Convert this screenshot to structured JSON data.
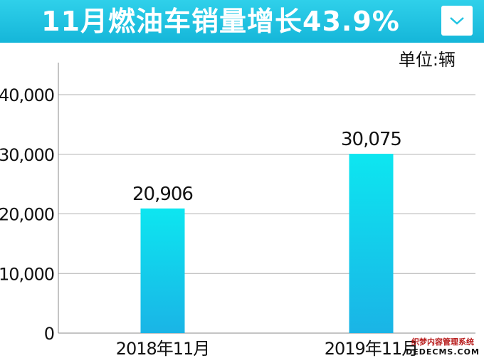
{
  "header": {
    "title": "11月燃油车销量增长43.9%",
    "menu_icon": "chevron-down-icon",
    "background": "#22c4e2"
  },
  "unit_label": "单位:辆",
  "watermark": {
    "line1": "织梦内容管理系统",
    "line2": "DEDECMS.COM"
  },
  "chart_data": {
    "type": "bar",
    "categories": [
      "2018年11月",
      "2019年11月"
    ],
    "values": [
      20906,
      30075
    ],
    "value_labels": [
      "20,906",
      "30,075"
    ],
    "ylim": [
      0,
      40000
    ],
    "yticks": [
      0,
      10000,
      20000,
      30000,
      40000
    ],
    "ytick_labels": [
      "0",
      "10,000",
      "20,000",
      "30,000",
      "40,000"
    ],
    "grid": true,
    "bar_colors": [
      "#0de6f0",
      "#1ab4e6"
    ]
  }
}
